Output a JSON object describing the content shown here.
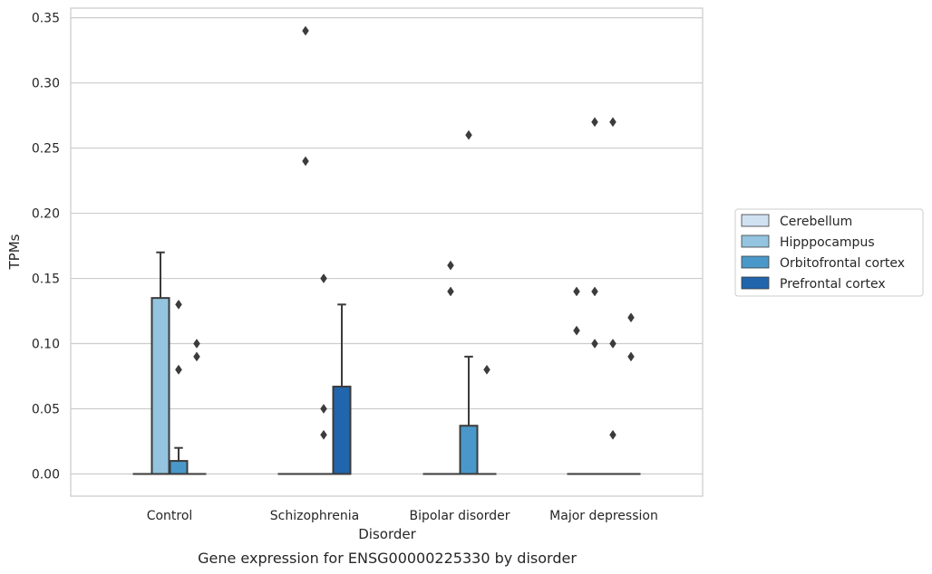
{
  "caption": "Gene expression for ENSG00000225330 by disorder",
  "chart_data": {
    "type": "box",
    "title": "",
    "xlabel": "Disorder",
    "ylabel": "TPMs",
    "ylim": [
      -0.017,
      0.358
    ],
    "yticks": [
      0.0,
      0.05,
      0.1,
      0.15,
      0.2,
      0.25,
      0.3,
      0.35
    ],
    "ytick_labels": [
      "0.00",
      "0.05",
      "0.10",
      "0.15",
      "0.20",
      "0.25",
      "0.30",
      "0.35"
    ],
    "grid": "horizontal",
    "legend_position": "right",
    "categories": [
      "Control",
      "Schizophrenia",
      "Bipolar disorder",
      "Major depression"
    ],
    "series": [
      {
        "name": "Cerebellum",
        "color": "#d0e1f2",
        "boxes": [
          {
            "q1": 0.0,
            "median": 0.0,
            "q3": 0.0,
            "whisker_low": 0.0,
            "whisker_high": 0.0,
            "outliers": []
          },
          {
            "q1": 0.0,
            "median": 0.0,
            "q3": 0.0,
            "whisker_low": 0.0,
            "whisker_high": 0.0,
            "outliers": []
          },
          {
            "q1": 0.0,
            "median": 0.0,
            "q3": 0.0,
            "whisker_low": 0.0,
            "whisker_high": 0.0,
            "outliers": []
          },
          {
            "q1": 0.0,
            "median": 0.0,
            "q3": 0.0,
            "whisker_low": 0.0,
            "whisker_high": 0.0,
            "outliers": [
              0.14,
              0.11
            ]
          }
        ]
      },
      {
        "name": "Hipppocampus",
        "color": "#94c4df",
        "boxes": [
          {
            "q1": 0.0,
            "median": 0.0,
            "q3": 0.135,
            "whisker_low": 0.0,
            "whisker_high": 0.17,
            "outliers": []
          },
          {
            "q1": 0.0,
            "median": 0.0,
            "q3": 0.0,
            "whisker_low": 0.0,
            "whisker_high": 0.0,
            "outliers": [
              0.34,
              0.24
            ]
          },
          {
            "q1": 0.0,
            "median": 0.0,
            "q3": 0.0,
            "whisker_low": 0.0,
            "whisker_high": 0.0,
            "outliers": [
              0.16,
              0.14
            ]
          },
          {
            "q1": 0.0,
            "median": 0.0,
            "q3": 0.0,
            "whisker_low": 0.0,
            "whisker_high": 0.0,
            "outliers": [
              0.27,
              0.14,
              0.1
            ]
          }
        ]
      },
      {
        "name": "Orbitofrontal cortex",
        "color": "#4a98c9",
        "boxes": [
          {
            "q1": 0.0,
            "median": 0.0,
            "q3": 0.01,
            "whisker_low": 0.0,
            "whisker_high": 0.02,
            "outliers": [
              0.13,
              0.08,
              0.08
            ]
          },
          {
            "q1": 0.0,
            "median": 0.0,
            "q3": 0.0,
            "whisker_low": 0.0,
            "whisker_high": 0.0,
            "outliers": [
              0.15,
              0.05,
              0.03
            ]
          },
          {
            "q1": 0.0,
            "median": 0.0,
            "q3": 0.037,
            "whisker_low": 0.0,
            "whisker_high": 0.09,
            "outliers": [
              0.26
            ]
          },
          {
            "q1": 0.0,
            "median": 0.0,
            "q3": 0.0,
            "whisker_low": 0.0,
            "whisker_high": 0.0,
            "outliers": [
              0.27,
              0.1,
              0.03
            ]
          }
        ]
      },
      {
        "name": "Prefrontal cortex",
        "color": "#2166ac",
        "boxes": [
          {
            "q1": 0.0,
            "median": 0.0,
            "q3": 0.0,
            "whisker_low": 0.0,
            "whisker_high": 0.0,
            "outliers": [
              0.1,
              0.09
            ]
          },
          {
            "q1": 0.0,
            "median": 0.0,
            "q3": 0.067,
            "whisker_low": 0.0,
            "whisker_high": 0.13,
            "outliers": []
          },
          {
            "q1": 0.0,
            "median": 0.0,
            "q3": 0.0,
            "whisker_low": 0.0,
            "whisker_high": 0.0,
            "outliers": [
              0.08
            ]
          },
          {
            "q1": 0.0,
            "median": 0.0,
            "q3": 0.0,
            "whisker_low": 0.0,
            "whisker_high": 0.0,
            "outliers": [
              0.12,
              0.09
            ]
          }
        ]
      }
    ]
  }
}
